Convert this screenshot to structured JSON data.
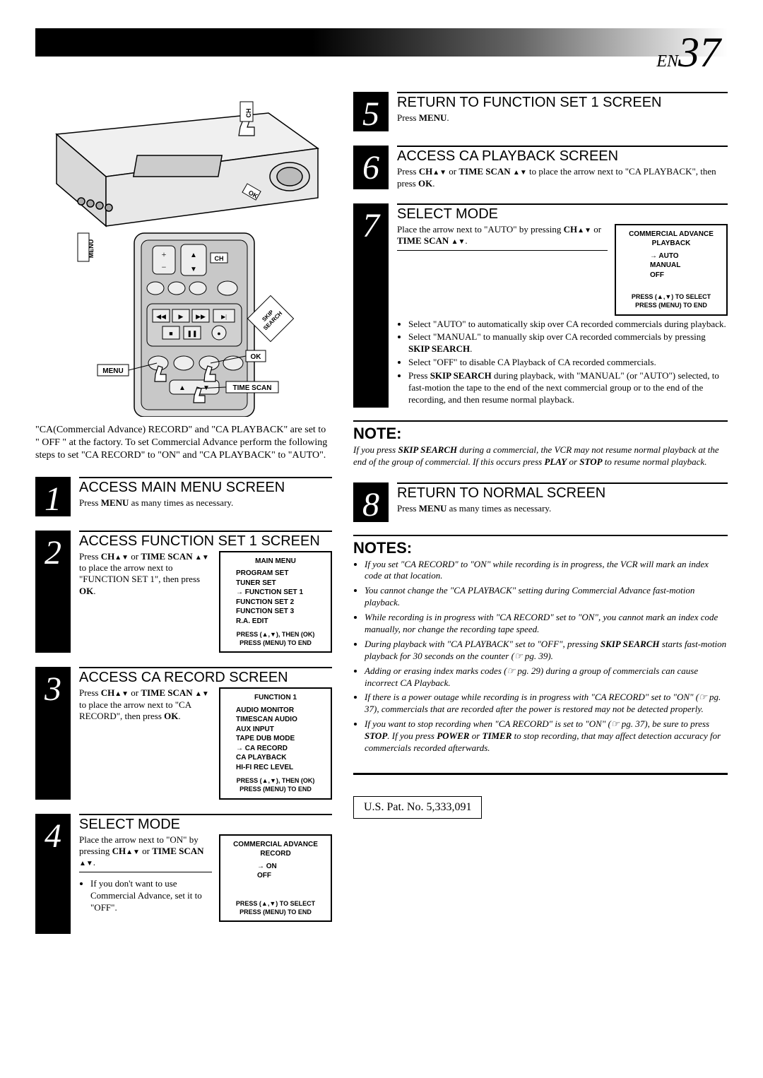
{
  "page_label": {
    "prefix": "EN",
    "number": "37"
  },
  "vcr": {
    "labels": {
      "ch": "CH",
      "ok": "OK",
      "menu": "MENU"
    },
    "remote_labels": {
      "ch": "CH",
      "ok": "OK",
      "menu": "MENU",
      "time_scan": "TIME SCAN",
      "skip_search": "SKIP SEARCH"
    }
  },
  "intro": "\"CA(Commercial Advance) RECORD\" and \"CA PLAYBACK\" are set to \" OFF \" at the factory. To set Commercial Advance perform the following steps to set \"CA RECORD\" to \"ON\" and \"CA PLAYBACK\" to \"AUTO\".",
  "steps": {
    "s1": {
      "title": "ACCESS MAIN MENU SCREEN",
      "text": "Press <b>MENU</b> as many times as necessary."
    },
    "s2": {
      "title": "ACCESS FUNCTION SET 1 SCREEN",
      "text": "Press <b>CH</b><span class='updown'></span> or <b>TIME SCAN</b> <span class='updown'></span> to place the arrow next to \"FUNCTION SET 1\", then press <b>OK</b>.",
      "menu": {
        "title": "MAIN MENU",
        "items": [
          "PROGRAM SET",
          "TUNER SET",
          "→FUNCTION SET 1",
          "FUNCTION SET 2",
          "FUNCTION SET 3",
          "R.A. EDIT"
        ],
        "footer1": "PRESS (▲,▼), THEN (OK)",
        "footer2": "PRESS (MENU) TO END"
      }
    },
    "s3": {
      "title": "ACCESS CA RECORD SCREEN",
      "text": "Press <b>CH</b><span class='updown'></span> or <b>TIME SCAN</b> <span class='updown'></span> to place the arrow next to \"CA RECORD\", then press <b>OK</b>.",
      "menu": {
        "title": "FUNCTION 1",
        "items": [
          "AUDIO MONITOR",
          "TIMESCAN AUDIO",
          "AUX INPUT",
          "TAPE DUB MODE",
          "→CA RECORD",
          "CA PLAYBACK",
          "HI-FI REC LEVEL"
        ],
        "footer1": "PRESS (▲,▼), THEN (OK)",
        "footer2": "PRESS (MENU) TO END"
      }
    },
    "s4": {
      "title": "SELECT MODE",
      "text": "Place the arrow next to \"ON\" by pressing <b>CH</b><span class='updown'></span> or <b>TIME SCAN</b> <span class='updown'></span>.",
      "bullet": "If you don't want to use Commercial Advance, set it to \"OFF\".",
      "menu": {
        "title": "COMMERCIAL ADVANCE RECORD",
        "items": [
          "→ON",
          "OFF"
        ],
        "footer1": "PRESS (▲,▼) TO SELECT",
        "footer2": "PRESS (MENU) TO END"
      }
    },
    "s5": {
      "title": "RETURN TO FUNCTION SET 1 SCREEN",
      "text": "Press <b>MENU</b>."
    },
    "s6": {
      "title": "ACCESS CA PLAYBACK SCREEN",
      "text": "Press <b>CH</b><span class='updown'></span> or <b>TIME SCAN</b> <span class='updown'></span> to place the arrow next to \"CA PLAYBACK\", then press <b>OK</b>."
    },
    "s7": {
      "title": "SELECT MODE",
      "text": "Place the arrow next to \"AUTO\" by pressing <b>CH</b><span class='updown'></span> or <b>TIME SCAN</b> <span class='updown'></span>.",
      "bullets": [
        "Select \"AUTO\" to automatically skip over CA recorded commercials during playback.",
        "Select \"MANUAL\" to manually skip over CA recorded commercials by pressing <b>SKIP SEARCH</b>.",
        "Select \"OFF\" to disable CA Playback of CA recorded commercials.",
        "Press <b>SKIP SEARCH</b> during playback, with \"MANUAL\" (or \"AUTO\") selected, to fast-motion the tape to the end of the next commercial group or to the end of the recording, and then resume normal playback."
      ],
      "menu": {
        "title": "COMMERCIAL ADVANCE PLAYBACK",
        "items": [
          "→AUTO",
          "MANUAL",
          "OFF"
        ],
        "footer1": "PRESS (▲,▼) TO SELECT",
        "footer2": "PRESS (MENU) TO END"
      }
    },
    "s8": {
      "title": "RETURN TO NORMAL SCREEN",
      "text": "Press <b>MENU</b> as many times as necessary."
    }
  },
  "note": {
    "heading": "NOTE:",
    "text": "If you press <b>SKIP SEARCH</b> during a commercial, the VCR may not resume normal playback at the end of the group of commercial. If this occurs press <b>PLAY</b> or <b>STOP</b> to resume normal playback."
  },
  "notes": {
    "heading": "NOTES:",
    "items": [
      "If you set \"CA RECORD\" to \"ON\" while recording is in progress, the VCR will mark an index code at that location.",
      "You cannot change the \"CA PLAYBACK\" setting during Commercial Advance fast-motion playback.",
      "While recording is in progress with \"CA RECORD\" set to \"ON\", you cannot mark an index code manually, nor change the recording tape speed.",
      "During playback with \"CA PLAYBACK\" set to \"OFF\", pressing <b>SKIP SEARCH</b> starts fast-motion playback for 30 seconds on the counter (<span class='ref'></span> pg. 39).",
      "Adding or erasing index marks codes (<span class='ref'></span> pg. 29) during a group of commercials can cause incorrect CA Playback.",
      "If there is a power outage while recording is in progress with \"CA RECORD\" set to \"ON\" (<span class='ref'></span> pg. 37), commercials that are recorded after the power is restored may not be detected properly.",
      "If you want to stop recording when \"CA RECORD\" is set to \"ON\" (<span class='ref'></span> pg. 37), be sure to press <b>STOP</b>. If you press <b>POWER</b> or <b>TIMER</b> to stop recording, that may affect detection accuracy for commercials recorded afterwards."
    ]
  },
  "patent": "U.S. Pat. No. 5,333,091"
}
